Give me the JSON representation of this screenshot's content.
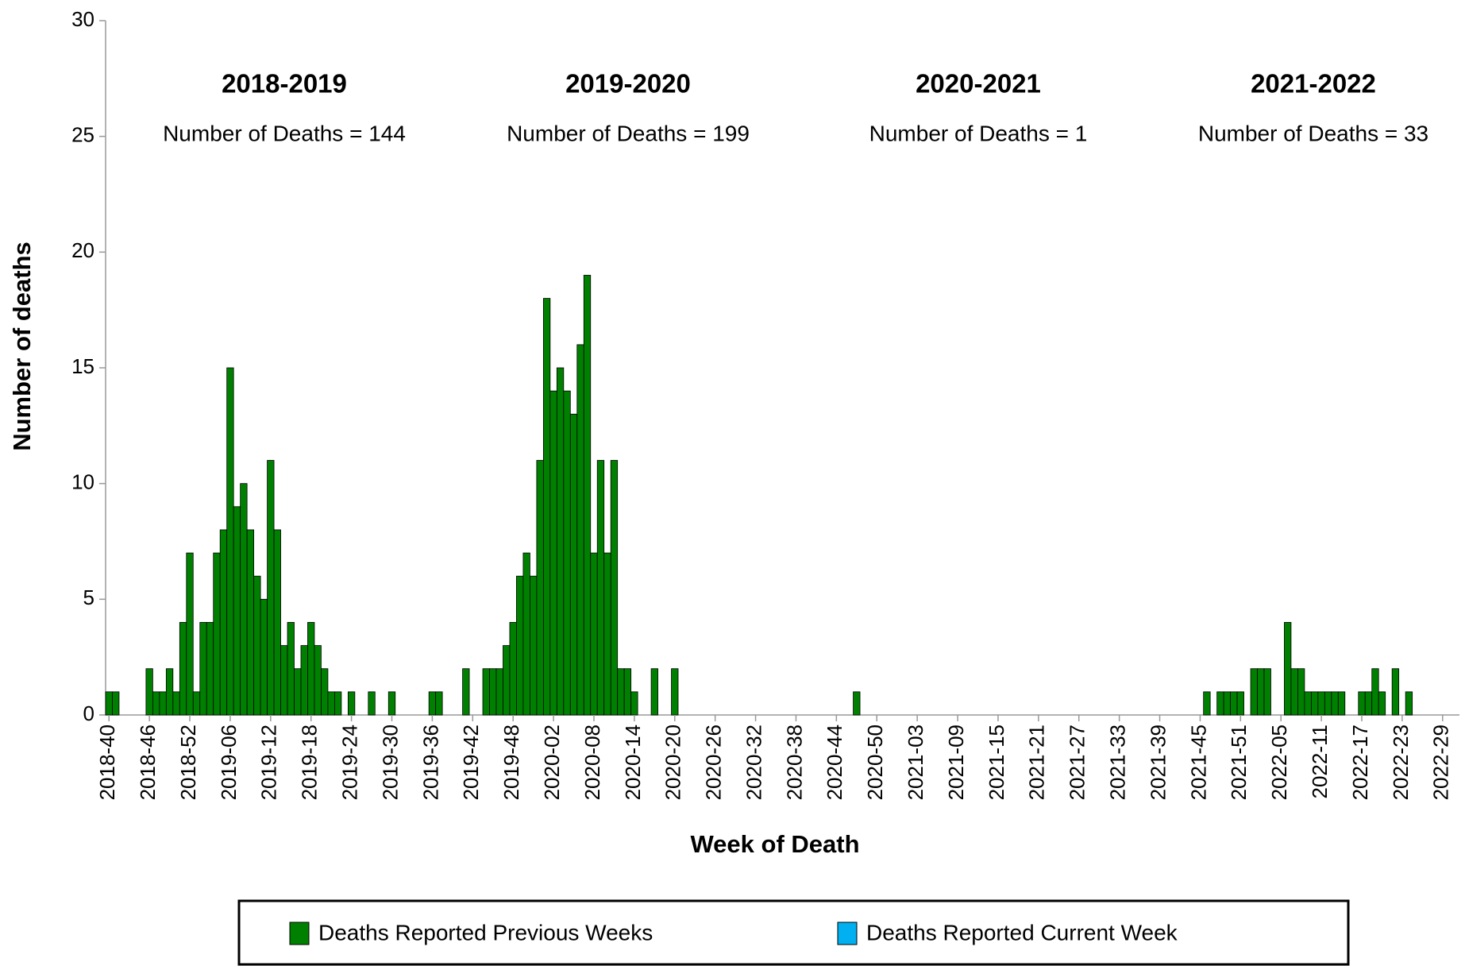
{
  "chart_data": {
    "type": "bar",
    "stacked": true,
    "x_label": "Week of Death",
    "y_label": "Number of deaths",
    "ylim": [
      0,
      30
    ],
    "yticks": [
      0,
      5,
      10,
      15,
      20,
      25,
      30
    ],
    "grid": false,
    "legend": "bottom",
    "annotations": [
      {
        "title": "2018-2019",
        "text": "Number of Deaths = 144"
      },
      {
        "title": "2019-2020",
        "text": "Number of Deaths = 199"
      },
      {
        "title": "2020-2021",
        "text": "Number of Deaths = 1"
      },
      {
        "title": "2021-2022",
        "text": "Number of Deaths = 33"
      }
    ],
    "categories": [
      "2018-40",
      null,
      null,
      null,
      null,
      null,
      "2018-46",
      null,
      null,
      null,
      null,
      null,
      "2018-52",
      null,
      null,
      null,
      null,
      null,
      "2019-06",
      null,
      null,
      null,
      null,
      null,
      "2019-12",
      null,
      null,
      null,
      null,
      null,
      "2019-18",
      null,
      null,
      null,
      null,
      null,
      "2019-24",
      null,
      null,
      null,
      null,
      null,
      "2019-30",
      null,
      null,
      null,
      null,
      null,
      "2019-36",
      null,
      null,
      null,
      null,
      null,
      "2019-42",
      null,
      null,
      null,
      null,
      null,
      "2019-48",
      null,
      null,
      null,
      null,
      null,
      "2020-02",
      null,
      null,
      null,
      null,
      null,
      "2020-08",
      null,
      null,
      null,
      null,
      null,
      "2020-14",
      null,
      null,
      null,
      null,
      null,
      "2020-20",
      null,
      null,
      null,
      null,
      null,
      "2020-26",
      null,
      null,
      null,
      null,
      null,
      "2020-32",
      null,
      null,
      null,
      null,
      null,
      "2020-38",
      null,
      null,
      null,
      null,
      null,
      "2020-44",
      null,
      null,
      null,
      null,
      null,
      "2020-50",
      null,
      null,
      null,
      null,
      null,
      "2021-03",
      null,
      null,
      null,
      null,
      null,
      "2021-09",
      null,
      null,
      null,
      null,
      null,
      "2021-15",
      null,
      null,
      null,
      null,
      null,
      "2021-21",
      null,
      null,
      null,
      null,
      null,
      "2021-27",
      null,
      null,
      null,
      null,
      null,
      "2021-33",
      null,
      null,
      null,
      null,
      null,
      "2021-39",
      null,
      null,
      null,
      null,
      null,
      "2021-45",
      null,
      null,
      null,
      null,
      null,
      "2021-51",
      null,
      null,
      null,
      null,
      null,
      "2022-05",
      null,
      null,
      null,
      null,
      null,
      "2022-11",
      null,
      null,
      null,
      null,
      null,
      "2022-17",
      null,
      null,
      null,
      null,
      null,
      "2022-23",
      null,
      null,
      null,
      null,
      null,
      "2022-29",
      null,
      null
    ],
    "series": [
      {
        "name": "Deaths Reported Previous Weeks",
        "color": "#008000",
        "values": [
          1,
          1,
          0,
          0,
          0,
          0,
          2,
          1,
          1,
          2,
          1,
          4,
          7,
          1,
          4,
          4,
          7,
          8,
          15,
          9,
          10,
          8,
          6,
          5,
          11,
          8,
          3,
          4,
          2,
          3,
          4,
          3,
          2,
          1,
          1,
          0,
          1,
          0,
          0,
          1,
          0,
          0,
          1,
          0,
          0,
          0,
          0,
          0,
          1,
          1,
          0,
          0,
          0,
          2,
          0,
          0,
          2,
          2,
          2,
          3,
          4,
          6,
          7,
          6,
          11,
          18,
          14,
          15,
          14,
          13,
          16,
          19,
          7,
          11,
          7,
          11,
          2,
          2,
          1,
          0,
          0,
          2,
          0,
          0,
          2,
          0,
          0,
          0,
          0,
          0,
          0,
          0,
          0,
          0,
          0,
          0,
          0,
          0,
          0,
          0,
          0,
          0,
          0,
          0,
          0,
          0,
          0,
          0,
          0,
          0,
          0,
          1,
          0,
          0,
          0,
          0,
          0,
          0,
          0,
          0,
          0,
          0,
          0,
          0,
          0,
          0,
          0,
          0,
          0,
          0,
          0,
          0,
          0,
          0,
          0,
          0,
          0,
          0,
          0,
          0,
          0,
          0,
          0,
          0,
          0,
          0,
          0,
          0,
          0,
          0,
          0,
          0,
          0,
          0,
          0,
          0,
          0,
          0,
          0,
          0,
          0,
          0,
          0,
          1,
          0,
          1,
          1,
          1,
          1,
          0,
          2,
          2,
          2,
          0,
          0,
          4,
          2,
          2,
          1,
          1,
          1,
          1,
          1,
          1,
          0,
          0,
          1,
          1,
          2,
          1,
          0,
          2,
          0,
          1,
          0,
          0,
          0,
          0,
          0,
          0,
          0
        ]
      },
      {
        "name": "Deaths Reported Current Week",
        "color": "#00b0f0",
        "values": [
          0,
          0,
          0,
          0,
          0,
          0,
          0,
          0,
          0,
          0,
          0,
          0,
          0,
          0,
          0,
          0,
          0,
          0,
          0,
          0,
          0,
          0,
          0,
          0,
          0,
          0,
          0,
          0,
          0,
          0,
          0,
          0,
          0,
          0,
          0,
          0,
          0,
          0,
          0,
          0,
          0,
          0,
          0,
          0,
          0,
          0,
          0,
          0,
          0,
          0,
          0,
          0,
          0,
          0,
          0,
          0,
          0,
          0,
          0,
          0,
          0,
          0,
          0,
          0,
          0,
          0,
          0,
          0,
          0,
          0,
          0,
          0,
          0,
          0,
          0,
          0,
          0,
          0,
          0,
          0,
          0,
          0,
          0,
          0,
          0,
          0,
          0,
          0,
          0,
          0,
          0,
          0,
          0,
          0,
          0,
          0,
          0,
          0,
          0,
          0,
          0,
          0,
          0,
          0,
          0,
          0,
          0,
          0,
          0,
          0,
          0,
          0,
          0,
          0,
          0,
          0,
          0,
          0,
          0,
          0,
          0,
          0,
          0,
          0,
          0,
          0,
          0,
          0,
          0,
          0,
          0,
          0,
          0,
          0,
          0,
          0,
          0,
          0,
          0,
          0,
          0,
          0,
          0,
          0,
          0,
          0,
          0,
          0,
          0,
          0,
          0,
          0,
          0,
          0,
          0,
          0,
          0,
          0,
          0,
          0,
          0,
          0,
          0,
          0,
          0,
          0,
          0,
          0,
          0,
          0,
          0,
          0,
          0,
          0,
          0,
          0,
          0,
          0,
          0,
          0,
          0,
          0,
          0,
          0,
          0,
          0,
          0,
          0,
          0,
          0,
          0,
          0,
          0,
          0,
          0,
          0,
          0,
          0,
          0,
          0,
          0
        ]
      }
    ]
  }
}
